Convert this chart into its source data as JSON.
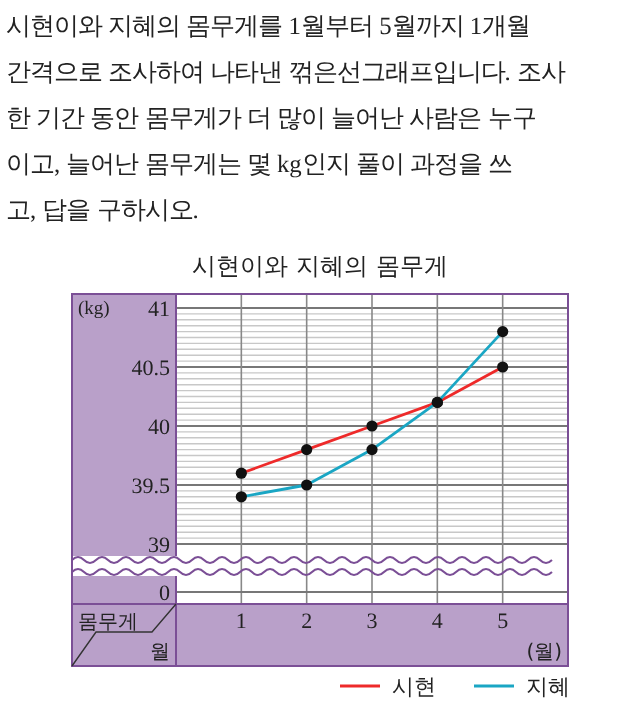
{
  "chart_data": {
    "type": "line",
    "title": "시현이와 지혜의 몸무게",
    "ylabel": "(kg)",
    "xlabel": "(월)",
    "annotations": [
      "시현이와 지혜의 몸무게를 1월부터 5월까지 1개월",
      "간격으로 조사하여 나타낸 꺾은선그래프입니다. 조사",
      "한 기간 동안 몸무게가 더 많이 늘어난 사람은 누구",
      "이고, 늘어난 몸무게는 몇 kg인지 풀이 과정을 쓰",
      "고, 답을 구하시오.",
      "몸무게",
      "월",
      "0"
    ],
    "categories": [
      "1",
      "2",
      "3",
      "4",
      "5"
    ],
    "series": [
      {
        "name": "시현",
        "color": "#ee2a2a",
        "values": [
          39.6,
          39.8,
          40,
          40.2,
          40.5
        ]
      },
      {
        "name": "지혜",
        "color": "#1aa6c4",
        "values": [
          39.4,
          39.5,
          39.8,
          40.2,
          40.8
        ]
      }
    ],
    "ylim": [
      39,
      41
    ],
    "yticks": [
      39,
      {
        "value": 39.5,
        "label": "39.5"
      },
      40,
      {
        "value": 40.5,
        "label": "40.5"
      },
      41
    ],
    "grid": true,
    "legend": "bottom right",
    "marker": "circle"
  }
}
